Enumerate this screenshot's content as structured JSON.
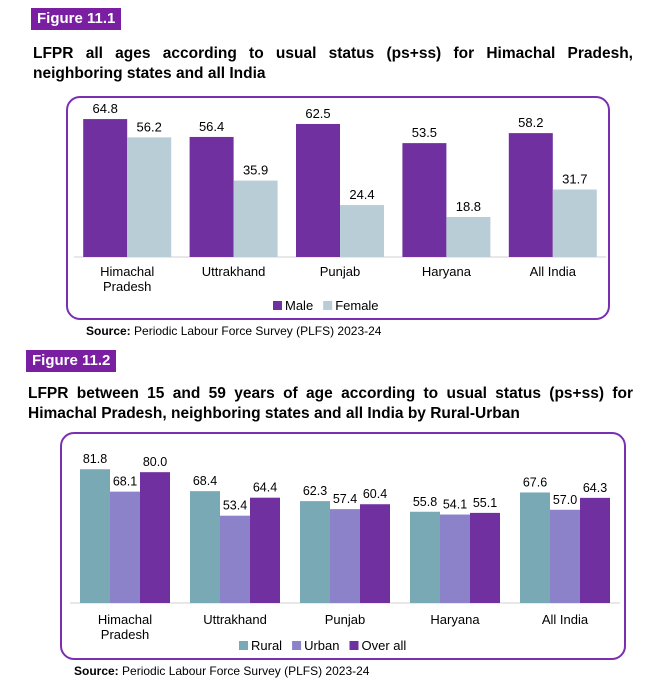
{
  "figure1": {
    "tag": "Figure 11.1",
    "title": "LFPR all ages according to usual status (ps+ss) for Himachal Pradesh, neighboring states and all India",
    "source_label": "Source:",
    "source_text": " Periodic Labour Force Survey (PLFS) 2023-24"
  },
  "figure2": {
    "tag": "Figure 11.2",
    "title": "LFPR between 15 and 59 years of age according to usual status (ps+ss) for Himachal Pradesh, neighboring states and all India by Rural-Urban",
    "source_label": "Source:",
    "source_text": " Periodic Labour Force Survey (PLFS) 2023-24"
  },
  "chart_data": [
    {
      "type": "bar",
      "categories": [
        [
          "Himachal",
          "Pradesh"
        ],
        [
          "Uttrakhand"
        ],
        [
          "Punjab"
        ],
        [
          "Haryana"
        ],
        [
          "All India"
        ]
      ],
      "series": [
        {
          "name": "Male",
          "color": "#7030a0",
          "values": [
            64.8,
            56.4,
            62.5,
            53.5,
            58.2
          ]
        },
        {
          "name": "Female",
          "color": "#b8cdd6",
          "values": [
            56.2,
            35.9,
            24.4,
            18.8,
            31.7
          ]
        }
      ],
      "ylim": [
        0,
        70
      ],
      "grid": false,
      "legend": "bottom",
      "data_labels": true
    },
    {
      "type": "bar",
      "categories": [
        [
          "Himachal",
          "Pradesh"
        ],
        [
          "Uttrakhand"
        ],
        [
          "Punjab"
        ],
        [
          "Haryana"
        ],
        [
          "All India"
        ]
      ],
      "series": [
        {
          "name": "Rural",
          "color": "#79a9b5",
          "values": [
            81.8,
            68.4,
            62.3,
            55.8,
            67.6
          ]
        },
        {
          "name": "Urban",
          "color": "#8b82ca",
          "values": [
            68.1,
            53.4,
            57.4,
            54.1,
            57.0
          ]
        },
        {
          "name": "Over all",
          "color": "#7030a0",
          "values": [
            80.0,
            64.4,
            60.4,
            55.1,
            64.3
          ]
        }
      ],
      "ylim": [
        0,
        85
      ],
      "grid": false,
      "legend": "bottom",
      "data_labels": true
    }
  ]
}
